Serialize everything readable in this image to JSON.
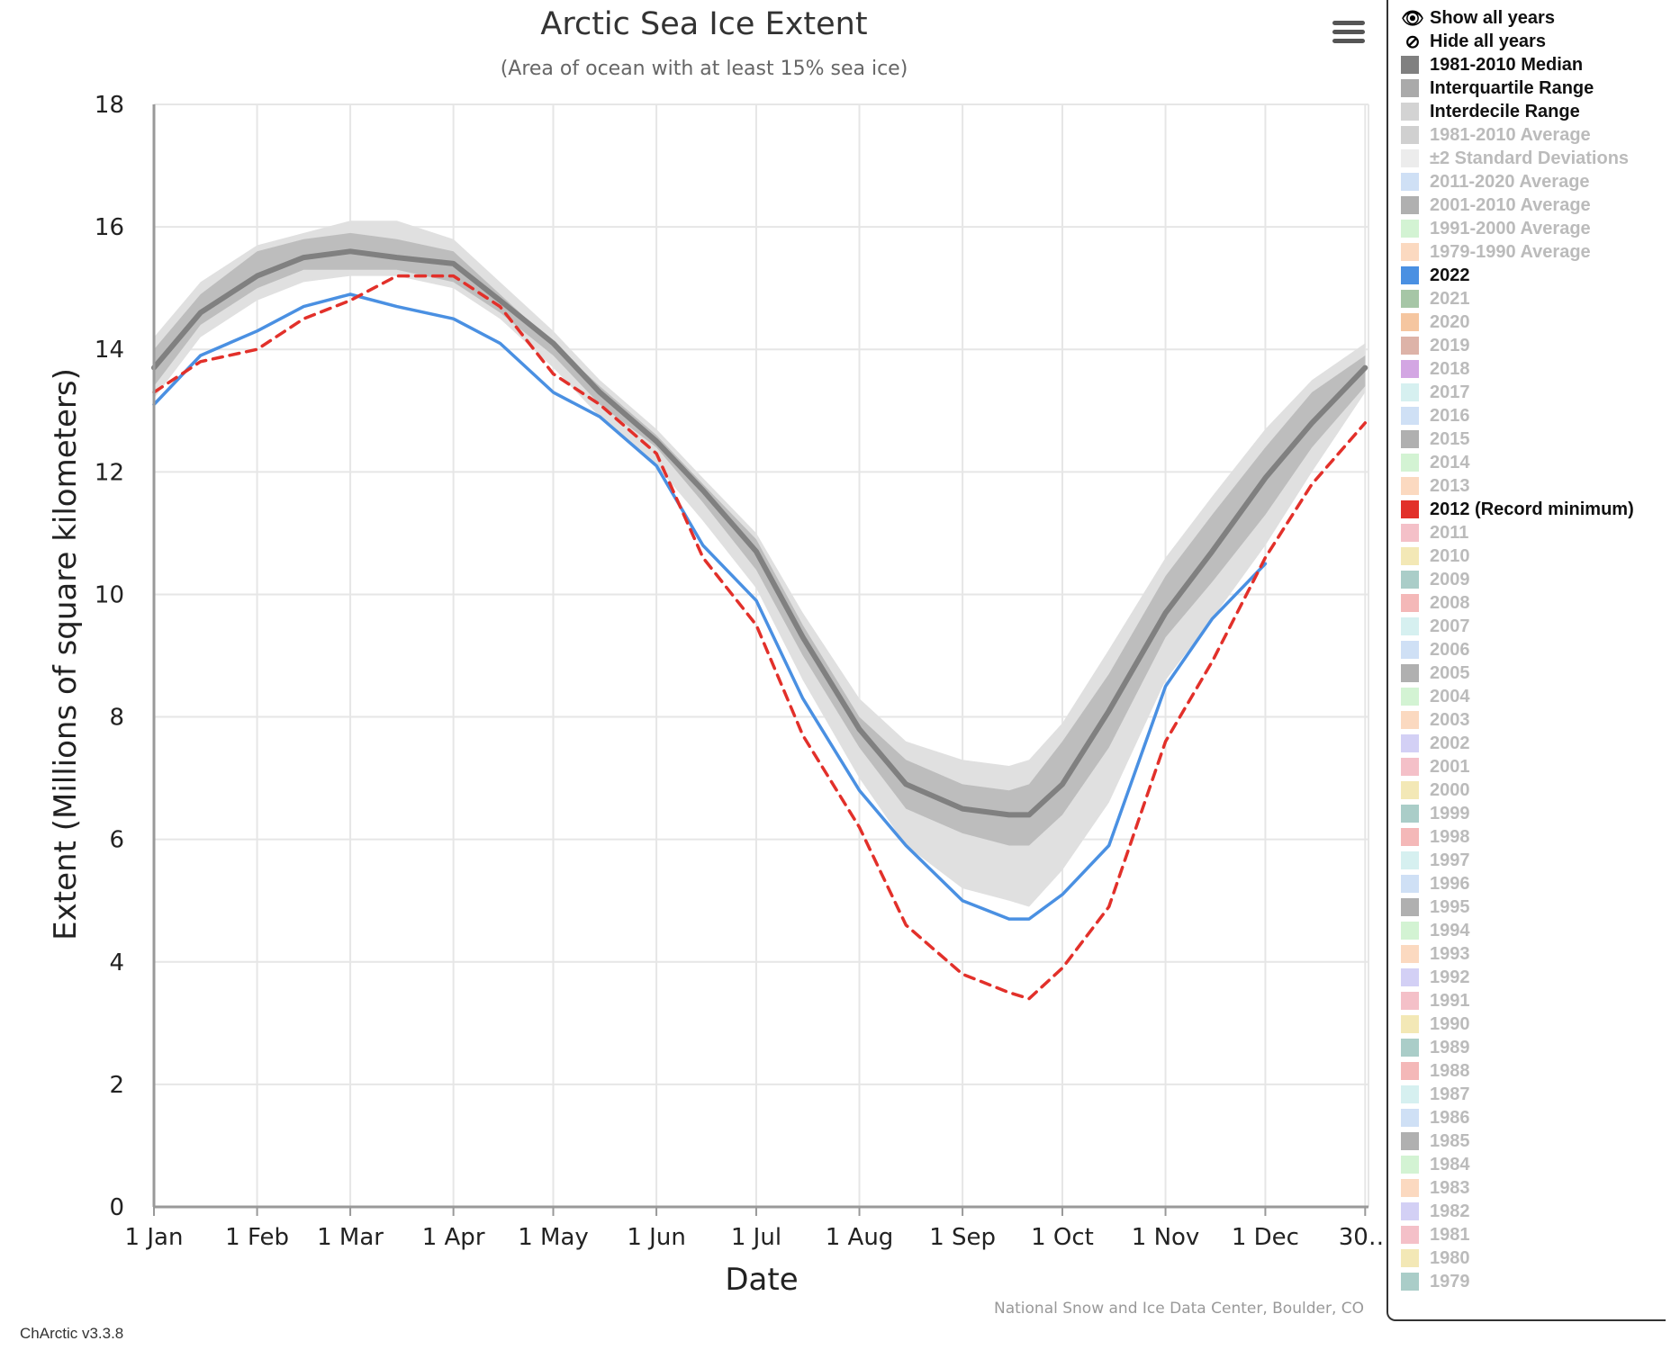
{
  "header": {
    "title": "Arctic Sea Ice Extent",
    "subtitle": "(Area of ocean with at least 15% sea ice)"
  },
  "chart_data": {
    "type": "line",
    "title": "Arctic Sea Ice Extent",
    "subtitle": "(Area of ocean with at least 15% sea ice)",
    "xlabel": "Date",
    "ylabel": "Extent (Millions of square kilometers)",
    "ylim": [
      0,
      18
    ],
    "y_ticks": [
      0,
      2,
      4,
      6,
      8,
      10,
      12,
      14,
      16,
      18
    ],
    "x_tick_labels": [
      "1 Jan",
      "1 Feb",
      "1 Mar",
      "1 Apr",
      "1 May",
      "1 Jun",
      "1 Jul",
      "1 Aug",
      "1 Sep",
      "1 Oct",
      "1 Nov",
      "1 Dec",
      "30…"
    ],
    "x_tick_days": [
      1,
      32,
      60,
      91,
      121,
      152,
      182,
      213,
      244,
      274,
      305,
      335,
      365
    ],
    "grid": true,
    "legend_position": "right",
    "credit": "National Snow and Ice Data Center, Boulder, CO",
    "x_days": [
      1,
      15,
      32,
      46,
      60,
      74,
      91,
      105,
      121,
      135,
      152,
      166,
      182,
      196,
      213,
      227,
      244,
      258,
      264,
      274,
      288,
      305,
      319,
      335,
      349,
      365
    ],
    "bands": [
      {
        "name": "Interdecile Range",
        "color": "#e0e0e0",
        "low": [
          13.2,
          14.2,
          14.8,
          15.1,
          15.2,
          15.2,
          15.0,
          14.5,
          13.7,
          12.9,
          12.1,
          11.2,
          10.1,
          8.6,
          7.0,
          5.9,
          5.2,
          5.0,
          4.9,
          5.5,
          6.6,
          8.6,
          9.6,
          10.8,
          12.0,
          13.3
        ],
        "high": [
          14.2,
          15.1,
          15.7,
          15.9,
          16.1,
          16.1,
          15.8,
          15.1,
          14.3,
          13.5,
          12.7,
          11.9,
          11.0,
          9.7,
          8.3,
          7.6,
          7.3,
          7.2,
          7.3,
          7.9,
          9.1,
          10.6,
          11.6,
          12.7,
          13.5,
          14.1
        ]
      },
      {
        "name": "Interquartile Range",
        "color": "#bdbdbd",
        "low": [
          13.4,
          14.4,
          15.0,
          15.3,
          15.3,
          15.3,
          15.1,
          14.6,
          13.9,
          13.1,
          12.4,
          11.5,
          10.4,
          9.0,
          7.5,
          6.5,
          6.1,
          5.9,
          5.9,
          6.4,
          7.5,
          9.3,
          10.2,
          11.3,
          12.4,
          13.4
        ],
        "high": [
          14.0,
          14.9,
          15.6,
          15.8,
          15.9,
          15.8,
          15.6,
          14.9,
          14.1,
          13.4,
          12.6,
          11.8,
          10.9,
          9.5,
          8.0,
          7.3,
          6.9,
          6.8,
          6.9,
          7.6,
          8.7,
          10.3,
          11.3,
          12.4,
          13.3,
          13.9
        ]
      }
    ],
    "series": [
      {
        "name": "1981-2010 Median",
        "color": "#808080",
        "dashed": false,
        "values": [
          13.7,
          14.6,
          15.2,
          15.5,
          15.6,
          15.5,
          15.4,
          14.8,
          14.1,
          13.3,
          12.5,
          11.7,
          10.7,
          9.3,
          7.8,
          6.9,
          6.5,
          6.4,
          6.4,
          6.9,
          8.1,
          9.7,
          10.7,
          11.9,
          12.8,
          13.7
        ]
      },
      {
        "name": "2022",
        "color": "#4a90e2",
        "dashed": false,
        "values": [
          13.1,
          13.9,
          14.3,
          14.7,
          14.9,
          14.7,
          14.5,
          14.1,
          13.3,
          12.9,
          12.1,
          10.8,
          9.9,
          8.3,
          6.8,
          5.9,
          5.0,
          4.7,
          4.7,
          5.1,
          5.9,
          8.5,
          9.6,
          10.5,
          null,
          null
        ]
      },
      {
        "name": "2012 (Record minimum)",
        "color": "#e2302a",
        "dashed": true,
        "values": [
          13.3,
          13.8,
          14.0,
          14.5,
          14.8,
          15.2,
          15.2,
          14.7,
          13.6,
          13.1,
          12.3,
          10.6,
          9.5,
          7.7,
          6.2,
          4.6,
          3.8,
          3.5,
          3.4,
          3.9,
          4.9,
          7.6,
          8.9,
          10.6,
          11.8,
          12.8
        ]
      }
    ]
  },
  "legend": {
    "controls": [
      {
        "label": "Show all years",
        "icon": "eye-icon",
        "glyph": "👁"
      },
      {
        "label": "Hide all years",
        "icon": "eye-slash-icon",
        "glyph": "⊘"
      }
    ],
    "items": [
      {
        "label": "1981-2010 Median",
        "color": "#808080",
        "active": true
      },
      {
        "label": "Interquartile Range",
        "color": "#aaaaaa",
        "active": true
      },
      {
        "label": "Interdecile Range",
        "color": "#d3d3d3",
        "active": true
      },
      {
        "label": "1981-2010 Average",
        "color": "#d0d0d0",
        "active": false
      },
      {
        "label": "±2 Standard Deviations",
        "color": "#ececec",
        "active": false
      },
      {
        "label": "2011-2020 Average",
        "color": "#cfe0f5",
        "active": false
      },
      {
        "label": "2001-2010 Average",
        "color": "#b0b0b0",
        "active": false
      },
      {
        "label": "1991-2000 Average",
        "color": "#d3f3d3",
        "active": false
      },
      {
        "label": "1979-1990 Average",
        "color": "#fbd9c0",
        "active": false
      },
      {
        "label": "2022",
        "color": "#4a90e2",
        "active": true
      },
      {
        "label": "2021",
        "color": "#a6c6a6",
        "active": false
      },
      {
        "label": "2020",
        "color": "#f5c6a0",
        "active": false
      },
      {
        "label": "2019",
        "color": "#ddb3a8",
        "active": false
      },
      {
        "label": "2018",
        "color": "#d3a6e3",
        "active": false
      },
      {
        "label": "2017",
        "color": "#d6f0f0",
        "active": false
      },
      {
        "label": "2016",
        "color": "#cfe0f5",
        "active": false
      },
      {
        "label": "2015",
        "color": "#b0b0b0",
        "active": false
      },
      {
        "label": "2014",
        "color": "#d3f3d3",
        "active": false
      },
      {
        "label": "2013",
        "color": "#fbd9c0",
        "active": false
      },
      {
        "label": "2012 (Record minimum)",
        "color": "#e2302a",
        "active": true
      },
      {
        "label": "2011",
        "color": "#f4c0c8",
        "active": false
      },
      {
        "label": "2010",
        "color": "#f3e8b6",
        "active": false
      },
      {
        "label": "2009",
        "color": "#aacdc8",
        "active": false
      },
      {
        "label": "2008",
        "color": "#f4b8b8",
        "active": false
      },
      {
        "label": "2007",
        "color": "#d6f0f0",
        "active": false
      },
      {
        "label": "2006",
        "color": "#cfe0f5",
        "active": false
      },
      {
        "label": "2005",
        "color": "#b0b0b0",
        "active": false
      },
      {
        "label": "2004",
        "color": "#d3f3d3",
        "active": false
      },
      {
        "label": "2003",
        "color": "#fbd9c0",
        "active": false
      },
      {
        "label": "2002",
        "color": "#d3d0f5",
        "active": false
      },
      {
        "label": "2001",
        "color": "#f4c0c8",
        "active": false
      },
      {
        "label": "2000",
        "color": "#f3e8b6",
        "active": false
      },
      {
        "label": "1999",
        "color": "#aacdc8",
        "active": false
      },
      {
        "label": "1998",
        "color": "#f4b8b8",
        "active": false
      },
      {
        "label": "1997",
        "color": "#d6f0f0",
        "active": false
      },
      {
        "label": "1996",
        "color": "#cfe0f5",
        "active": false
      },
      {
        "label": "1995",
        "color": "#b0b0b0",
        "active": false
      },
      {
        "label": "1994",
        "color": "#d3f3d3",
        "active": false
      },
      {
        "label": "1993",
        "color": "#fbd9c0",
        "active": false
      },
      {
        "label": "1992",
        "color": "#d3d0f5",
        "active": false
      },
      {
        "label": "1991",
        "color": "#f4c0c8",
        "active": false
      },
      {
        "label": "1990",
        "color": "#f3e8b6",
        "active": false
      },
      {
        "label": "1989",
        "color": "#aacdc8",
        "active": false
      },
      {
        "label": "1988",
        "color": "#f4b8b8",
        "active": false
      },
      {
        "label": "1987",
        "color": "#d6f0f0",
        "active": false
      },
      {
        "label": "1986",
        "color": "#cfe0f5",
        "active": false
      },
      {
        "label": "1985",
        "color": "#b0b0b0",
        "active": false
      },
      {
        "label": "1984",
        "color": "#d3f3d3",
        "active": false
      },
      {
        "label": "1983",
        "color": "#fbd9c0",
        "active": false
      },
      {
        "label": "1982",
        "color": "#d3d0f5",
        "active": false
      },
      {
        "label": "1981",
        "color": "#f4c0c8",
        "active": false
      },
      {
        "label": "1980",
        "color": "#f3e8b6",
        "active": false
      },
      {
        "label": "1979",
        "color": "#aacdc8",
        "active": false
      }
    ]
  },
  "footer": {
    "version": "ChArctic v3.3.8"
  },
  "menu": {
    "icon": "hamburger-menu-icon"
  }
}
